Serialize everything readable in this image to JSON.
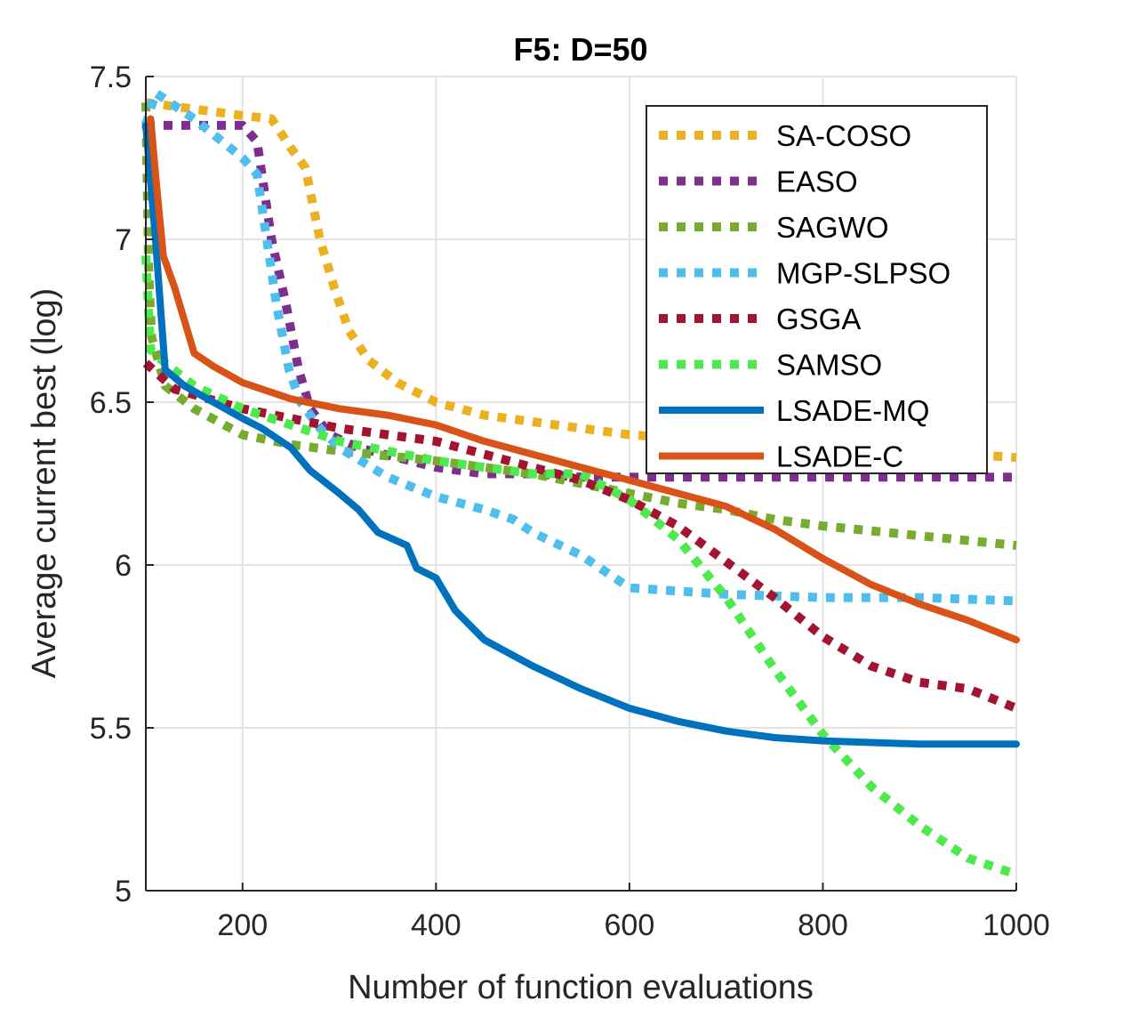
{
  "chart_data": {
    "type": "line",
    "title": "F5: D=50",
    "xlabel": "Number of function evaluations",
    "ylabel": "Average current best (log)",
    "xlim": [
      100,
      1000
    ],
    "ylim": [
      5,
      7.5
    ],
    "xticks": [
      200,
      400,
      600,
      800,
      1000
    ],
    "yticks": [
      5,
      5.5,
      6,
      6.5,
      7,
      7.5
    ],
    "xtick_labels": [
      "200",
      "400",
      "600",
      "800",
      "1000"
    ],
    "ytick_labels": [
      "5",
      "5.5",
      "6",
      "6.5",
      "7",
      "7.5"
    ],
    "grid": true,
    "legend_position": "top-right",
    "series": [
      {
        "name": "SA-COSO",
        "color": "#EDB120",
        "style": "dotted",
        "points": [
          [
            100,
            7.42
          ],
          [
            150,
            7.4
          ],
          [
            200,
            7.38
          ],
          [
            230,
            7.37
          ],
          [
            250,
            7.28
          ],
          [
            265,
            7.22
          ],
          [
            280,
            7.0
          ],
          [
            295,
            6.85
          ],
          [
            310,
            6.72
          ],
          [
            330,
            6.63
          ],
          [
            360,
            6.56
          ],
          [
            400,
            6.5
          ],
          [
            450,
            6.46
          ],
          [
            500,
            6.44
          ],
          [
            550,
            6.42
          ],
          [
            600,
            6.4
          ],
          [
            650,
            6.39
          ],
          [
            700,
            6.38
          ],
          [
            800,
            6.36
          ],
          [
            900,
            6.35
          ],
          [
            1000,
            6.33
          ]
        ]
      },
      {
        "name": "EASO",
        "color": "#7E2F8E",
        "style": "dotted",
        "points": [
          [
            100,
            7.35
          ],
          [
            150,
            7.35
          ],
          [
            200,
            7.35
          ],
          [
            215,
            7.3
          ],
          [
            230,
            7.0
          ],
          [
            245,
            6.8
          ],
          [
            258,
            6.6
          ],
          [
            270,
            6.48
          ],
          [
            290,
            6.4
          ],
          [
            320,
            6.36
          ],
          [
            360,
            6.33
          ],
          [
            400,
            6.3
          ],
          [
            450,
            6.28
          ],
          [
            500,
            6.28
          ],
          [
            550,
            6.27
          ],
          [
            600,
            6.27
          ],
          [
            700,
            6.27
          ],
          [
            800,
            6.27
          ],
          [
            900,
            6.27
          ],
          [
            1000,
            6.27
          ]
        ]
      },
      {
        "name": "SAGWO",
        "color": "#77AC30",
        "style": "dotted",
        "points": [
          [
            100,
            7.42
          ],
          [
            103,
            6.9
          ],
          [
            106,
            6.7
          ],
          [
            120,
            6.55
          ],
          [
            150,
            6.48
          ],
          [
            200,
            6.4
          ],
          [
            250,
            6.37
          ],
          [
            300,
            6.35
          ],
          [
            400,
            6.32
          ],
          [
            500,
            6.28
          ],
          [
            550,
            6.25
          ],
          [
            600,
            6.22
          ],
          [
            650,
            6.19
          ],
          [
            700,
            6.17
          ],
          [
            750,
            6.14
          ],
          [
            800,
            6.12
          ],
          [
            900,
            6.09
          ],
          [
            1000,
            6.06
          ]
        ]
      },
      {
        "name": "MGP-SLPSO",
        "color": "#4DBEEE",
        "style": "dotted",
        "points": [
          [
            100,
            7.35
          ],
          [
            110,
            7.45
          ],
          [
            150,
            7.37
          ],
          [
            200,
            7.25
          ],
          [
            215,
            7.2
          ],
          [
            225,
            7.0
          ],
          [
            235,
            6.8
          ],
          [
            248,
            6.6
          ],
          [
            260,
            6.5
          ],
          [
            280,
            6.42
          ],
          [
            300,
            6.36
          ],
          [
            350,
            6.27
          ],
          [
            400,
            6.21
          ],
          [
            450,
            6.17
          ],
          [
            480,
            6.14
          ],
          [
            500,
            6.1
          ],
          [
            550,
            6.03
          ],
          [
            600,
            5.93
          ],
          [
            650,
            5.92
          ],
          [
            700,
            5.91
          ],
          [
            800,
            5.9
          ],
          [
            900,
            5.9
          ],
          [
            1000,
            5.89
          ]
        ]
      },
      {
        "name": "GSGA",
        "color": "#A2142F",
        "style": "dotted",
        "points": [
          [
            100,
            6.62
          ],
          [
            130,
            6.54
          ],
          [
            200,
            6.48
          ],
          [
            300,
            6.42
          ],
          [
            400,
            6.38
          ],
          [
            500,
            6.3
          ],
          [
            550,
            6.26
          ],
          [
            600,
            6.2
          ],
          [
            650,
            6.12
          ],
          [
            700,
            6.01
          ],
          [
            750,
            5.9
          ],
          [
            800,
            5.78
          ],
          [
            850,
            5.69
          ],
          [
            900,
            5.64
          ],
          [
            950,
            5.62
          ],
          [
            1000,
            5.56
          ]
        ]
      },
      {
        "name": "SAMSO",
        "color": "#4DE94D",
        "style": "dotted",
        "points": [
          [
            100,
            6.95
          ],
          [
            105,
            6.66
          ],
          [
            120,
            6.62
          ],
          [
            150,
            6.55
          ],
          [
            200,
            6.48
          ],
          [
            300,
            6.38
          ],
          [
            400,
            6.32
          ],
          [
            500,
            6.28
          ],
          [
            550,
            6.28
          ],
          [
            600,
            6.2
          ],
          [
            650,
            6.08
          ],
          [
            700,
            5.9
          ],
          [
            750,
            5.68
          ],
          [
            800,
            5.48
          ],
          [
            850,
            5.32
          ],
          [
            900,
            5.2
          ],
          [
            950,
            5.1
          ],
          [
            1000,
            5.05
          ]
        ]
      },
      {
        "name": "LSADE-MQ",
        "color": "#0072BD",
        "style": "solid",
        "points": [
          [
            100,
            7.35
          ],
          [
            110,
            7.0
          ],
          [
            115,
            6.8
          ],
          [
            120,
            6.6
          ],
          [
            140,
            6.55
          ],
          [
            170,
            6.5
          ],
          [
            200,
            6.45
          ],
          [
            220,
            6.42
          ],
          [
            250,
            6.36
          ],
          [
            270,
            6.29
          ],
          [
            300,
            6.22
          ],
          [
            320,
            6.17
          ],
          [
            340,
            6.1
          ],
          [
            370,
            6.06
          ],
          [
            380,
            5.99
          ],
          [
            400,
            5.96
          ],
          [
            420,
            5.86
          ],
          [
            450,
            5.77
          ],
          [
            500,
            5.69
          ],
          [
            550,
            5.62
          ],
          [
            600,
            5.56
          ],
          [
            650,
            5.52
          ],
          [
            700,
            5.49
          ],
          [
            750,
            5.47
          ],
          [
            800,
            5.46
          ],
          [
            900,
            5.45
          ],
          [
            1000,
            5.45
          ]
        ]
      },
      {
        "name": "LSADE-C",
        "color": "#D95319",
        "style": "solid",
        "points": [
          [
            105,
            7.37
          ],
          [
            110,
            7.2
          ],
          [
            118,
            6.95
          ],
          [
            130,
            6.85
          ],
          [
            140,
            6.75
          ],
          [
            150,
            6.65
          ],
          [
            170,
            6.61
          ],
          [
            200,
            6.56
          ],
          [
            250,
            6.51
          ],
          [
            300,
            6.48
          ],
          [
            350,
            6.46
          ],
          [
            400,
            6.43
          ],
          [
            450,
            6.38
          ],
          [
            500,
            6.34
          ],
          [
            550,
            6.3
          ],
          [
            600,
            6.26
          ],
          [
            650,
            6.22
          ],
          [
            700,
            6.18
          ],
          [
            750,
            6.11
          ],
          [
            800,
            6.02
          ],
          [
            850,
            5.94
          ],
          [
            900,
            5.88
          ],
          [
            950,
            5.83
          ],
          [
            1000,
            5.77
          ]
        ]
      }
    ]
  }
}
